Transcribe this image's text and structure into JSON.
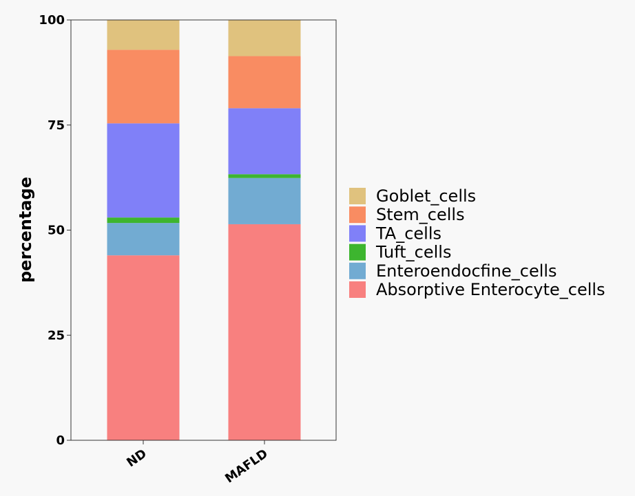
{
  "chart_data": {
    "type": "bar",
    "stacked": true,
    "categories": [
      "ND",
      "MAFLD"
    ],
    "ylabel": "percentage",
    "xlabel": "",
    "ylim": [
      0,
      100
    ],
    "yticks": [
      0,
      25,
      50,
      75,
      100
    ],
    "legend_position": "right",
    "grid": false,
    "series": [
      {
        "name": "Absorptive Enterocyte_cells",
        "color": "#f8807f",
        "values": [
          44.0,
          51.4
        ]
      },
      {
        "name": "Enteroendocfine_cells",
        "color": "#72abd2",
        "values": [
          7.7,
          11.0
        ]
      },
      {
        "name": "Tuft_cells",
        "color": "#3db52f",
        "values": [
          1.3,
          0.9
        ]
      },
      {
        "name": "TA_cells",
        "color": "#8080f8",
        "values": [
          22.4,
          15.7
        ]
      },
      {
        "name": "Stem_cells",
        "color": "#f98c62",
        "values": [
          17.5,
          12.4
        ]
      },
      {
        "name": "Goblet_cells",
        "color": "#e0c27e",
        "values": [
          7.1,
          8.6
        ]
      }
    ],
    "legend_order": [
      "Goblet_cells",
      "Stem_cells",
      "TA_cells",
      "Tuft_cells",
      "Enteroendocfine_cells",
      "Absorptive Enterocyte_cells"
    ]
  }
}
